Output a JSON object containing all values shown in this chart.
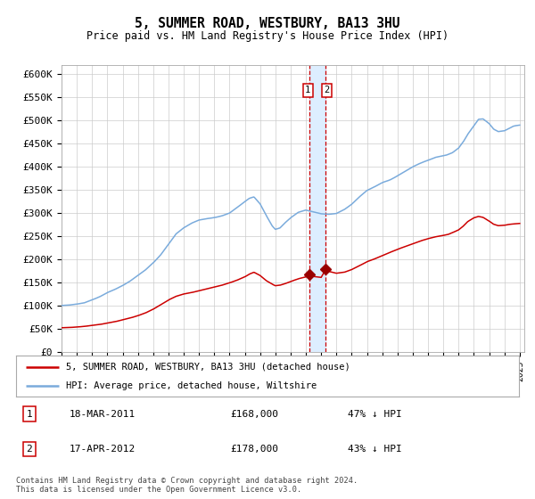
{
  "title": "5, SUMMER ROAD, WESTBURY, BA13 3HU",
  "subtitle": "Price paid vs. HM Land Registry's House Price Index (HPI)",
  "legend_line1": "5, SUMMER ROAD, WESTBURY, BA13 3HU (detached house)",
  "legend_line2": "HPI: Average price, detached house, Wiltshire",
  "footnote": "Contains HM Land Registry data © Crown copyright and database right 2024.\nThis data is licensed under the Open Government Licence v3.0.",
  "transaction1_label": "18-MAR-2011",
  "transaction1_price": "£168,000",
  "transaction1_hpi": "47% ↓ HPI",
  "transaction2_label": "17-APR-2012",
  "transaction2_price": "£178,000",
  "transaction2_hpi": "43% ↓ HPI",
  "hpi_color": "#7aabdc",
  "price_color": "#cc0000",
  "marker_color": "#990000",
  "vline_color": "#cc0000",
  "vband_color": "#ddeeff",
  "grid_color": "#cccccc",
  "background_color": "#ffffff",
  "ylim": [
    0,
    620000
  ],
  "yticks": [
    0,
    50000,
    100000,
    150000,
    200000,
    250000,
    300000,
    350000,
    400000,
    450000,
    500000,
    550000,
    600000
  ],
  "ytick_labels": [
    "£0",
    "£50K",
    "£100K",
    "£150K",
    "£200K",
    "£250K",
    "£300K",
    "£350K",
    "£400K",
    "£450K",
    "£500K",
    "£550K",
    "£600K"
  ],
  "xstart_year": 1995,
  "xend_year": 2025,
  "transaction1_year": 2011.21,
  "transaction2_year": 2012.29,
  "transaction1_value": 168000,
  "transaction2_value": 178000
}
